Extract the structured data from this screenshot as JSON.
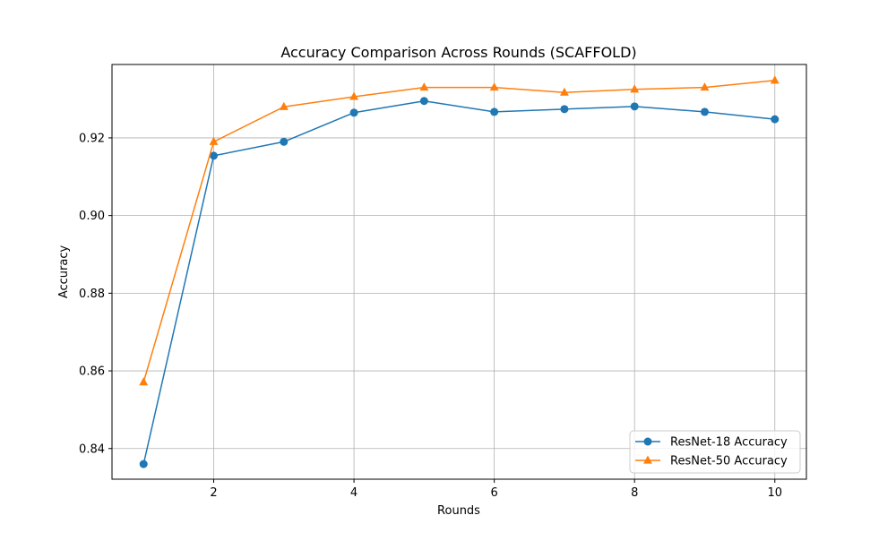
{
  "chart_data": {
    "type": "line",
    "title": "Accuracy Comparison Across Rounds (SCAFFOLD)",
    "xlabel": "Rounds",
    "ylabel": "Accuracy",
    "xlim": [
      0.55,
      10.45
    ],
    "ylim": [
      0.8321,
      0.9389
    ],
    "xticks": [
      2,
      4,
      6,
      8,
      10
    ],
    "xtick_labels": [
      "2",
      "4",
      "6",
      "8",
      "10"
    ],
    "yticks": [
      0.84,
      0.86,
      0.88,
      0.9,
      0.92
    ],
    "ytick_labels": [
      "0.84",
      "0.86",
      "0.88",
      "0.90",
      "0.92"
    ],
    "grid": true,
    "legend_position": "bottom-right",
    "x": [
      1,
      2,
      3,
      4,
      5,
      6,
      7,
      8,
      9,
      10
    ],
    "series": [
      {
        "name": "ResNet-18 Accuracy",
        "color": "#1f77b4",
        "marker": "circle",
        "values": [
          0.836,
          0.9154,
          0.919,
          0.9265,
          0.9295,
          0.9267,
          0.9274,
          0.9281,
          0.9267,
          0.9248
        ]
      },
      {
        "name": "ResNet-50 Accuracy",
        "color": "#ff7f0e",
        "marker": "triangle",
        "values": [
          0.8571,
          0.919,
          0.928,
          0.9306,
          0.933,
          0.933,
          0.9317,
          0.9325,
          0.933,
          0.9348
        ]
      }
    ]
  }
}
